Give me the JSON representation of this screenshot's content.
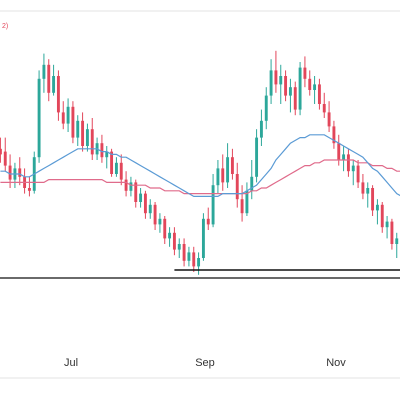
{
  "colors": {
    "up": "#2ca79a",
    "down": "#e2465a",
    "ma_short": "#5b9bd5",
    "ma_long": "#e06b8b",
    "support": "#111111",
    "separator": "#e3e3e3",
    "legend_text": "#e2465a"
  },
  "legend_snippet": "2)",
  "chart_data": {
    "type": "candlestick",
    "xlabels": [
      "Jul",
      "Sep",
      "Nov"
    ],
    "ylim": [
      0,
      100
    ],
    "grid": false,
    "candles": [
      {
        "o": 54,
        "h": 58,
        "l": 49,
        "c": 52
      },
      {
        "o": 53,
        "h": 58,
        "l": 46,
        "c": 48
      },
      {
        "o": 48,
        "h": 52,
        "l": 40,
        "c": 43
      },
      {
        "o": 43,
        "h": 49,
        "l": 40,
        "c": 47
      },
      {
        "o": 47,
        "h": 51,
        "l": 41,
        "c": 44
      },
      {
        "o": 44,
        "h": 47,
        "l": 38,
        "c": 40
      },
      {
        "o": 40,
        "h": 44,
        "l": 37,
        "c": 39
      },
      {
        "o": 39,
        "h": 53,
        "l": 38,
        "c": 51
      },
      {
        "o": 51,
        "h": 82,
        "l": 49,
        "c": 79
      },
      {
        "o": 79,
        "h": 88,
        "l": 74,
        "c": 84
      },
      {
        "o": 84,
        "h": 86,
        "l": 71,
        "c": 74
      },
      {
        "o": 74,
        "h": 84,
        "l": 73,
        "c": 80
      },
      {
        "o": 80,
        "h": 82,
        "l": 64,
        "c": 67
      },
      {
        "o": 67,
        "h": 71,
        "l": 61,
        "c": 63
      },
      {
        "o": 63,
        "h": 72,
        "l": 60,
        "c": 69
      },
      {
        "o": 69,
        "h": 71,
        "l": 56,
        "c": 58
      },
      {
        "o": 58,
        "h": 66,
        "l": 55,
        "c": 64
      },
      {
        "o": 64,
        "h": 67,
        "l": 53,
        "c": 55
      },
      {
        "o": 55,
        "h": 63,
        "l": 53,
        "c": 61
      },
      {
        "o": 61,
        "h": 65,
        "l": 50,
        "c": 52
      },
      {
        "o": 52,
        "h": 58,
        "l": 50,
        "c": 56
      },
      {
        "o": 56,
        "h": 59,
        "l": 49,
        "c": 51
      },
      {
        "o": 51,
        "h": 55,
        "l": 47,
        "c": 53
      },
      {
        "o": 53,
        "h": 54,
        "l": 44,
        "c": 45
      },
      {
        "o": 45,
        "h": 51,
        "l": 44,
        "c": 49
      },
      {
        "o": 49,
        "h": 52,
        "l": 41,
        "c": 43
      },
      {
        "o": 43,
        "h": 46,
        "l": 37,
        "c": 39
      },
      {
        "o": 39,
        "h": 44,
        "l": 37,
        "c": 42
      },
      {
        "o": 42,
        "h": 43,
        "l": 33,
        "c": 35
      },
      {
        "o": 35,
        "h": 40,
        "l": 33,
        "c": 38
      },
      {
        "o": 38,
        "h": 39,
        "l": 29,
        "c": 31
      },
      {
        "o": 31,
        "h": 36,
        "l": 29,
        "c": 34
      },
      {
        "o": 34,
        "h": 35,
        "l": 25,
        "c": 27
      },
      {
        "o": 27,
        "h": 31,
        "l": 24,
        "c": 29
      },
      {
        "o": 29,
        "h": 30,
        "l": 20,
        "c": 22
      },
      {
        "o": 22,
        "h": 26,
        "l": 19,
        "c": 24
      },
      {
        "o": 24,
        "h": 26,
        "l": 16,
        "c": 18
      },
      {
        "o": 18,
        "h": 22,
        "l": 15,
        "c": 20
      },
      {
        "o": 20,
        "h": 22,
        "l": 12,
        "c": 14
      },
      {
        "o": 14,
        "h": 19,
        "l": 12,
        "c": 17
      },
      {
        "o": 17,
        "h": 19,
        "l": 10,
        "c": 12
      },
      {
        "o": 12,
        "h": 17,
        "l": 9,
        "c": 15
      },
      {
        "o": 15,
        "h": 31,
        "l": 14,
        "c": 29
      },
      {
        "o": 29,
        "h": 33,
        "l": 25,
        "c": 27
      },
      {
        "o": 27,
        "h": 45,
        "l": 26,
        "c": 41
      },
      {
        "o": 41,
        "h": 50,
        "l": 38,
        "c": 47
      },
      {
        "o": 47,
        "h": 52,
        "l": 39,
        "c": 42
      },
      {
        "o": 42,
        "h": 56,
        "l": 40,
        "c": 51
      },
      {
        "o": 51,
        "h": 54,
        "l": 43,
        "c": 45
      },
      {
        "o": 45,
        "h": 49,
        "l": 33,
        "c": 36
      },
      {
        "o": 36,
        "h": 41,
        "l": 28,
        "c": 31
      },
      {
        "o": 31,
        "h": 42,
        "l": 30,
        "c": 39
      },
      {
        "o": 39,
        "h": 50,
        "l": 36,
        "c": 44
      },
      {
        "o": 44,
        "h": 61,
        "l": 42,
        "c": 58
      },
      {
        "o": 58,
        "h": 68,
        "l": 55,
        "c": 64
      },
      {
        "o": 64,
        "h": 76,
        "l": 61,
        "c": 73
      },
      {
        "o": 73,
        "h": 86,
        "l": 70,
        "c": 82
      },
      {
        "o": 82,
        "h": 89,
        "l": 74,
        "c": 77
      },
      {
        "o": 77,
        "h": 84,
        "l": 70,
        "c": 80
      },
      {
        "o": 80,
        "h": 82,
        "l": 71,
        "c": 73
      },
      {
        "o": 73,
        "h": 79,
        "l": 67,
        "c": 76
      },
      {
        "o": 76,
        "h": 78,
        "l": 66,
        "c": 68
      },
      {
        "o": 68,
        "h": 85,
        "l": 66,
        "c": 83
      },
      {
        "o": 83,
        "h": 87,
        "l": 76,
        "c": 79
      },
      {
        "o": 79,
        "h": 82,
        "l": 73,
        "c": 75
      },
      {
        "o": 75,
        "h": 80,
        "l": 70,
        "c": 77
      },
      {
        "o": 77,
        "h": 79,
        "l": 68,
        "c": 70
      },
      {
        "o": 70,
        "h": 74,
        "l": 65,
        "c": 67
      },
      {
        "o": 67,
        "h": 71,
        "l": 60,
        "c": 62
      },
      {
        "o": 62,
        "h": 64,
        "l": 54,
        "c": 56
      },
      {
        "o": 56,
        "h": 59,
        "l": 48,
        "c": 50
      },
      {
        "o": 50,
        "h": 55,
        "l": 46,
        "c": 52
      },
      {
        "o": 52,
        "h": 54,
        "l": 44,
        "c": 46
      },
      {
        "o": 46,
        "h": 50,
        "l": 41,
        "c": 48
      },
      {
        "o": 48,
        "h": 50,
        "l": 40,
        "c": 42
      },
      {
        "o": 42,
        "h": 45,
        "l": 36,
        "c": 38
      },
      {
        "o": 38,
        "h": 42,
        "l": 33,
        "c": 40
      },
      {
        "o": 40,
        "h": 41,
        "l": 30,
        "c": 32
      },
      {
        "o": 32,
        "h": 36,
        "l": 27,
        "c": 34
      },
      {
        "o": 34,
        "h": 35,
        "l": 24,
        "c": 26
      },
      {
        "o": 26,
        "h": 30,
        "l": 22,
        "c": 28
      },
      {
        "o": 28,
        "h": 29,
        "l": 18,
        "c": 20
      },
      {
        "o": 20,
        "h": 24,
        "l": 15,
        "c": 22
      },
      {
        "o": 22,
        "h": 23,
        "l": 12,
        "c": 14
      }
    ],
    "ma_short": [
      46,
      46,
      45,
      45,
      45,
      44,
      44,
      45,
      46,
      47,
      48,
      49,
      50,
      51,
      52,
      53,
      54,
      54,
      54,
      54,
      54,
      53,
      53,
      52,
      52,
      51,
      51,
      50,
      49,
      48,
      47,
      46,
      45,
      44,
      43,
      42,
      41,
      40,
      39,
      38,
      37,
      37,
      37,
      37,
      37,
      37,
      38,
      38,
      38,
      38,
      38,
      39,
      40,
      41,
      43,
      45,
      47,
      50,
      52,
      54,
      56,
      57,
      58,
      58,
      59,
      59,
      59,
      59,
      58,
      57,
      56,
      55,
      54,
      53,
      52,
      51,
      49,
      47,
      46,
      44,
      42,
      40,
      38,
      37
    ],
    "ma_long": [
      42,
      42,
      42,
      42,
      42,
      42,
      42,
      42,
      42,
      42,
      43,
      43,
      43,
      43,
      43,
      43,
      43,
      43,
      43,
      43,
      43,
      43,
      42,
      42,
      42,
      42,
      42,
      41,
      41,
      41,
      41,
      40,
      40,
      40,
      39,
      39,
      39,
      39,
      38,
      38,
      38,
      38,
      38,
      38,
      38,
      38,
      38,
      38,
      38,
      38,
      38,
      38,
      39,
      39,
      40,
      40,
      41,
      42,
      43,
      44,
      45,
      46,
      47,
      48,
      48,
      49,
      49,
      50,
      50,
      50,
      50,
      50,
      50,
      50,
      49,
      49,
      49,
      48,
      48,
      48,
      47,
      47,
      46,
      46
    ],
    "support_level": 10
  }
}
